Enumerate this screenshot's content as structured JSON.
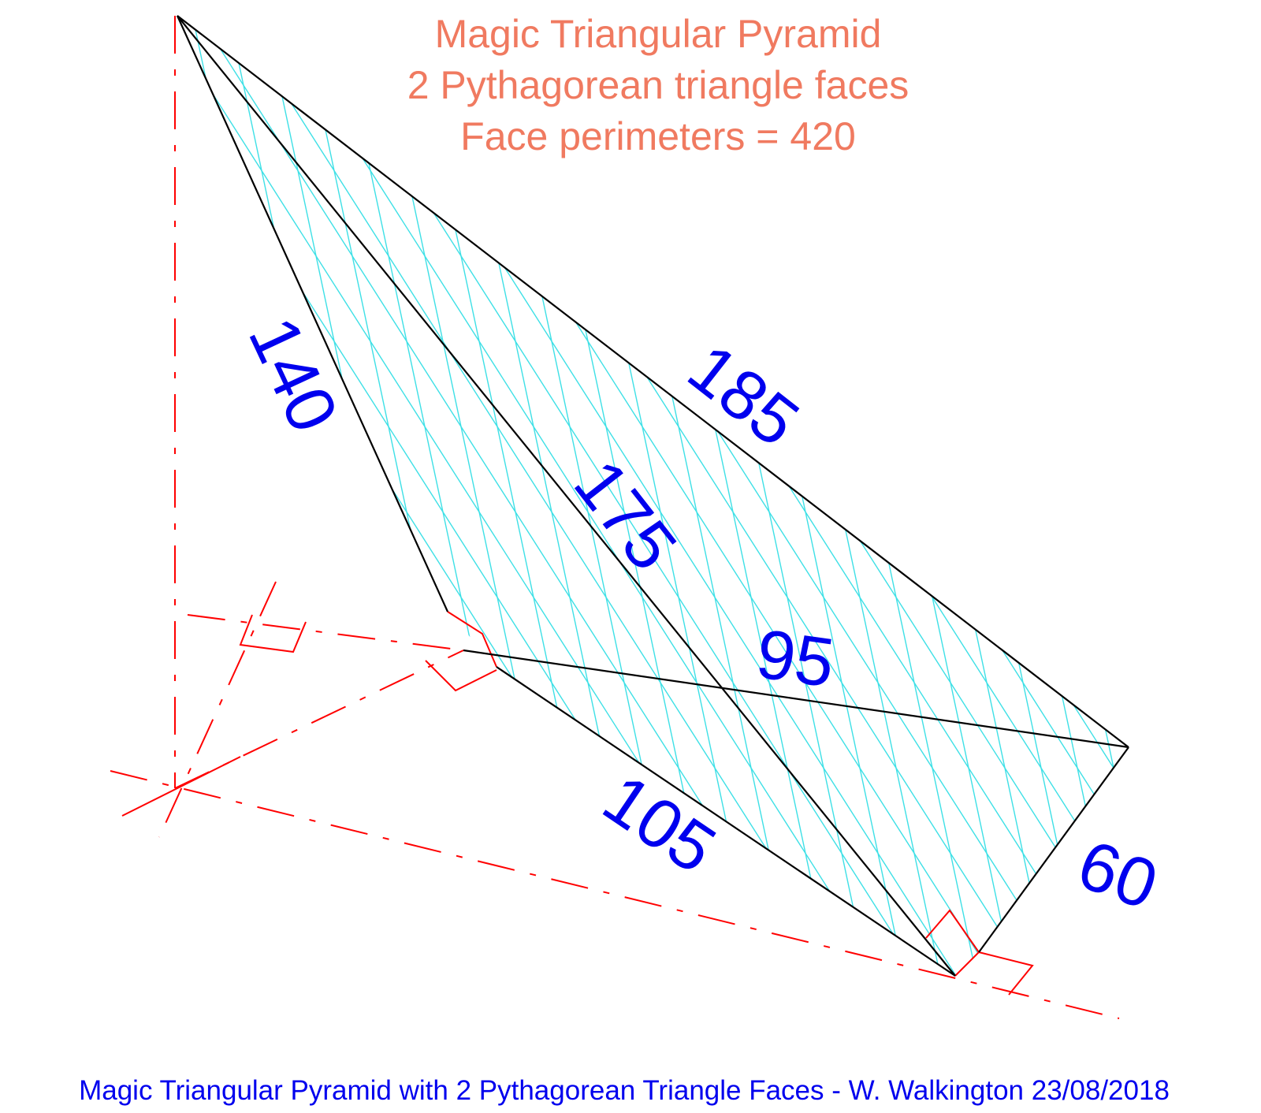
{
  "title": {
    "line1": "Magic Triangular Pyramid",
    "line2": "2 Pythagorean triangle faces",
    "line3": "Face perimeters = 420"
  },
  "edges": {
    "e140": "140",
    "e185": "185",
    "e175": "175",
    "e95": "95",
    "e105": "105",
    "e60": "60"
  },
  "footer": "Magic Triangular Pyramid with 2 Pythagorean Triangle Faces - W. Walkington 23/08/2018",
  "colors": {
    "title": "#f07a60",
    "labels": "#0000ee",
    "construction": "#ff0000",
    "hatch": "#3ee0e6",
    "edges": "#000000"
  }
}
